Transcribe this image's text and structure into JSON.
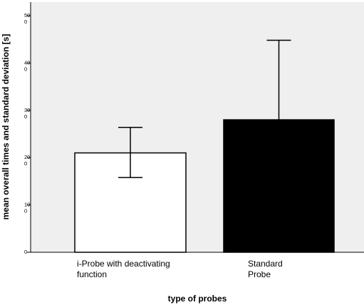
{
  "chart_data": {
    "type": "bar",
    "title": "",
    "xlabel": "type of probes",
    "ylabel": "mean overall times and standard deviation [s]",
    "ylim": [
      0,
      500
    ],
    "y_ticks": [
      {
        "value": 0,
        "label_lines": [
          "0"
        ]
      },
      {
        "value": 100,
        "label_lines": [
          "10",
          "0"
        ]
      },
      {
        "value": 200,
        "label_lines": [
          "20",
          "0"
        ]
      },
      {
        "value": 300,
        "label_lines": [
          "30",
          "0"
        ]
      },
      {
        "value": 400,
        "label_lines": [
          "40",
          "0"
        ]
      },
      {
        "value": 500,
        "label_lines": [
          "50",
          "0"
        ]
      }
    ],
    "categories": [
      {
        "lines": [
          "i-Probe with deactivating",
          "function"
        ],
        "name": "i-Probe with deactivating function"
      },
      {
        "lines": [
          "Standard",
          "Probe"
        ],
        "name": "Standard Probe"
      }
    ],
    "values": [
      210,
      280
    ],
    "error_low": [
      158,
      0
    ],
    "error_high": [
      264,
      448
    ],
    "bar_colors": [
      "#ffffff",
      "#000000"
    ],
    "grid": false,
    "background": "#efefef"
  }
}
